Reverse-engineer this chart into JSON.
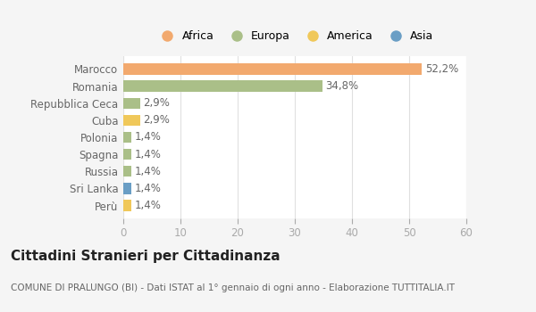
{
  "countries": [
    "Marocco",
    "Romania",
    "Repubblica Ceca",
    "Cuba",
    "Polonia",
    "Spagna",
    "Russia",
    "Sri Lanka",
    "Perù"
  ],
  "values": [
    52.2,
    34.8,
    2.9,
    2.9,
    1.4,
    1.4,
    1.4,
    1.4,
    1.4
  ],
  "labels": [
    "52,2%",
    "34,8%",
    "2,9%",
    "2,9%",
    "1,4%",
    "1,4%",
    "1,4%",
    "1,4%",
    "1,4%"
  ],
  "colors": [
    "#F2A96E",
    "#AABF88",
    "#AABF88",
    "#F0C85A",
    "#AABF88",
    "#AABF88",
    "#AABF88",
    "#6A9EC5",
    "#F0C85A"
  ],
  "legend": [
    {
      "label": "Africa",
      "color": "#F2A96E"
    },
    {
      "label": "Europa",
      "color": "#AABF88"
    },
    {
      "label": "America",
      "color": "#F0C85A"
    },
    {
      "label": "Asia",
      "color": "#6A9EC5"
    }
  ],
  "xlim": [
    0,
    60
  ],
  "xticks": [
    0,
    10,
    20,
    30,
    40,
    50,
    60
  ],
  "title": "Cittadini Stranieri per Cittadinanza",
  "subtitle": "COMUNE DI PRALUNGO (BI) - Dati ISTAT al 1° gennaio di ogni anno - Elaborazione TUTTITALIA.IT",
  "bg_color": "#f5f5f5",
  "plot_bg_color": "#ffffff",
  "grid_color": "#e0e0e0",
  "tick_color": "#aaaaaa",
  "label_color": "#666666",
  "title_fontsize": 11,
  "subtitle_fontsize": 7.5,
  "label_fontsize": 8.5,
  "ytick_fontsize": 8.5,
  "xtick_fontsize": 8.5,
  "legend_fontsize": 9
}
